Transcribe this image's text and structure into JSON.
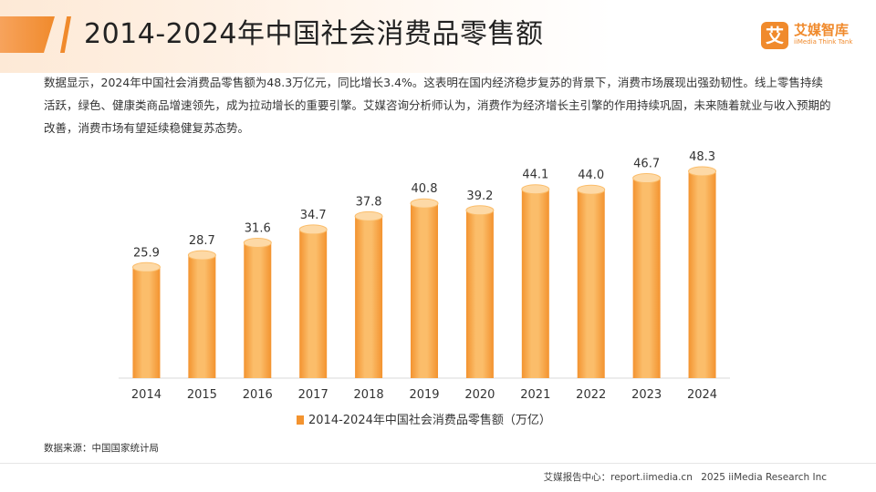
{
  "header": {
    "title": "2014-2024年中国社会消费品零售额",
    "logo_mark": "艾",
    "logo_name": "艾媒智库",
    "logo_en": "iiMedia Think Tank"
  },
  "intro": "数据显示，2024年中国社会消费品零售额为48.3万亿元，同比增长3.4%。这表明在国内经济稳步复苏的背景下，消费市场展现出强劲韧性。线上零售持续活跃，绿色、健康类商品增速领先，成为拉动增长的重要引擎。艾媒咨询分析师认为，消费作为经济增长主引擎的作用持续巩固，未来随着就业与收入预期的改善，消费市场有望延续稳健复苏态势。",
  "chart_data": {
    "type": "bar",
    "title": "",
    "categories": [
      "2014",
      "2015",
      "2016",
      "2017",
      "2018",
      "2019",
      "2020",
      "2021",
      "2022",
      "2023",
      "2024"
    ],
    "series": [
      {
        "name": "2014-2024年中国社会消费品零售额（万亿）",
        "values": [
          25.9,
          28.7,
          31.6,
          34.7,
          37.8,
          40.8,
          39.2,
          44.1,
          44.0,
          46.7,
          48.3
        ]
      }
    ],
    "xlabel": "",
    "ylabel": "",
    "ylim": [
      0,
      50
    ],
    "grid": false,
    "legend": "bottom-center",
    "colors": {
      "bar_light": "#fbbd6a",
      "bar_dark": "#f3932f",
      "bar_top": "#fdd9a6",
      "baseline": "#d9d9d9"
    }
  },
  "footer": {
    "source": "数据来源：中国国家统计局",
    "report_center": "艾媒报告中心：report.iimedia.cn",
    "copyright": "2025 iiMedia Research Inc"
  }
}
